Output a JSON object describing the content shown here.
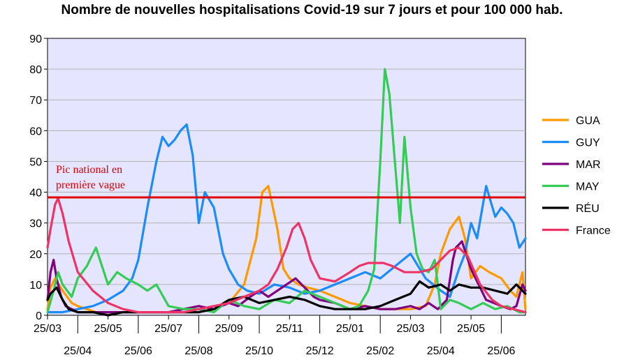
{
  "chart_data": {
    "type": "line",
    "title": "Nombre de nouvelles hospitalisations Covid-19 sur 7 jours et pour 100 000 hab.",
    "xlabel": "",
    "ylabel": "",
    "ylim": [
      0,
      90
    ],
    "yticks": [
      0,
      10,
      20,
      30,
      40,
      50,
      60,
      70,
      80,
      90
    ],
    "xlim": [
      0,
      15.8
    ],
    "x_tick_labels_row1": [
      "25/03",
      "25/05",
      "25/07",
      "25/09",
      "25/11",
      "25/01",
      "25/03",
      "25/05"
    ],
    "x_tick_labels_row2": [
      "25/04",
      "25/06",
      "25/08",
      "25/10",
      "25/12",
      "25/02",
      "25/04",
      "25/06"
    ],
    "grid": true,
    "plot_background": "#e5e5ff",
    "legend_position": "right",
    "reference_line": {
      "value": 38.3,
      "color": "#e00000",
      "label_line1": "Pic national en",
      "label_line2": "première vague"
    },
    "series": [
      {
        "name": "GUA",
        "color": "#ff9900",
        "x": [
          0,
          0.1,
          0.25,
          0.5,
          0.8,
          1.0,
          1.3,
          1.6,
          2.0,
          2.5,
          3.0,
          3.5,
          4.0,
          4.5,
          5.0,
          5.5,
          6.0,
          6.5,
          6.9,
          7.1,
          7.3,
          7.45,
          7.6,
          7.8,
          8.0,
          8.3,
          8.6,
          9.0,
          9.5,
          10.0,
          10.5,
          11.0,
          11.5,
          12.0,
          12.5,
          12.8,
          13.0,
          13.3,
          13.6,
          13.8,
          14.0,
          14.3,
          14.6,
          15.0,
          15.3,
          15.5,
          15.7,
          15.8
        ],
        "y": [
          2,
          9,
          12,
          8,
          4,
          3,
          2,
          1,
          1,
          1,
          1,
          1,
          1,
          1,
          1,
          2,
          4,
          10,
          25,
          40,
          42,
          35,
          28,
          15,
          12,
          10,
          9,
          8,
          6,
          4,
          3,
          2,
          2,
          2,
          3,
          10,
          20,
          28,
          32,
          25,
          12,
          16,
          14,
          12,
          8,
          6,
          14,
          2
        ]
      },
      {
        "name": "GUY",
        "color": "#1a8cff",
        "x": [
          0,
          0.5,
          1.0,
          1.5,
          2.0,
          2.5,
          2.8,
          3.0,
          3.3,
          3.6,
          3.8,
          4.0,
          4.2,
          4.4,
          4.6,
          4.8,
          5.0,
          5.2,
          5.5,
          5.8,
          6.0,
          6.3,
          6.6,
          7.0,
          7.5,
          8.0,
          8.5,
          9.0,
          9.5,
          10.0,
          10.5,
          11.0,
          11.5,
          12.0,
          12.5,
          13.0,
          13.3,
          13.6,
          13.8,
          14.0,
          14.2,
          14.5,
          14.8,
          15.0,
          15.2,
          15.4,
          15.6,
          15.8
        ],
        "y": [
          1,
          1,
          2,
          3,
          5,
          8,
          12,
          18,
          35,
          50,
          58,
          55,
          57,
          60,
          62,
          52,
          30,
          40,
          35,
          20,
          15,
          10,
          8,
          7,
          10,
          9,
          7,
          8,
          10,
          12,
          14,
          12,
          16,
          20,
          12,
          8,
          6,
          15,
          20,
          30,
          25,
          42,
          32,
          35,
          33,
          30,
          22,
          25
        ]
      },
      {
        "name": "MAR",
        "color": "#800080",
        "x": [
          0,
          0.1,
          0.2,
          0.3,
          0.45,
          0.6,
          0.8,
          1.0,
          1.5,
          2.0,
          2.5,
          3.0,
          3.5,
          4.0,
          4.5,
          5.0,
          5.5,
          6.0,
          6.3,
          6.7,
          7.0,
          7.3,
          7.6,
          7.9,
          8.2,
          8.5,
          8.8,
          9.0,
          9.5,
          10.0,
          10.5,
          11.0,
          11.5,
          12.0,
          12.3,
          12.6,
          12.9,
          13.2,
          13.4,
          13.5,
          13.7,
          14.0,
          14.5,
          15.0,
          15.3,
          15.5,
          15.7,
          15.8
        ],
        "y": [
          5,
          14,
          18,
          12,
          6,
          3,
          2,
          1,
          1,
          1,
          1,
          1,
          1,
          1,
          2,
          3,
          2,
          4,
          3,
          6,
          8,
          6,
          8,
          10,
          12,
          9,
          6,
          5,
          4,
          2,
          3,
          2,
          2,
          3,
          2,
          4,
          2,
          5,
          18,
          22,
          24,
          15,
          5,
          3,
          2,
          3,
          10,
          8
        ]
      },
      {
        "name": "MAY",
        "color": "#33cc55",
        "x": [
          0,
          0.2,
          0.35,
          0.5,
          0.8,
          1.0,
          1.3,
          1.6,
          2.0,
          2.3,
          2.6,
          3.0,
          3.3,
          3.6,
          4.0,
          4.5,
          5.0,
          5.5,
          6.0,
          6.5,
          7.0,
          7.5,
          8.0,
          8.5,
          9.0,
          9.5,
          10.0,
          10.3,
          10.6,
          10.8,
          11.0,
          11.15,
          11.3,
          11.5,
          11.65,
          11.8,
          12.0,
          12.2,
          12.4,
          12.6,
          12.8,
          13.0,
          13.3,
          13.6,
          14.0,
          14.4,
          14.8,
          15.2,
          15.6,
          15.8
        ],
        "y": [
          1,
          8,
          14,
          10,
          6,
          12,
          16,
          22,
          10,
          14,
          12,
          10,
          8,
          10,
          3,
          2,
          2,
          1,
          5,
          3,
          2,
          5,
          4,
          8,
          6,
          4,
          2,
          3,
          8,
          15,
          50,
          80,
          72,
          48,
          30,
          58,
          35,
          20,
          15,
          14,
          18,
          2,
          5,
          4,
          2,
          4,
          2,
          3,
          1,
          1
        ]
      },
      {
        "name": "RÉU",
        "color": "#000000",
        "x": [
          0,
          0.1,
          0.3,
          0.5,
          0.7,
          1.0,
          1.5,
          2.0,
          2.5,
          3.0,
          3.5,
          4.0,
          4.5,
          5.0,
          5.5,
          6.0,
          6.5,
          7.0,
          7.5,
          8.0,
          8.5,
          9.0,
          9.5,
          10.0,
          10.5,
          11.0,
          11.5,
          12.0,
          12.3,
          12.6,
          13.0,
          13.3,
          13.6,
          14.0,
          14.4,
          14.8,
          15.2,
          15.5,
          15.8
        ],
        "y": [
          5,
          7,
          9,
          5,
          2,
          1,
          1,
          0,
          1,
          1,
          1,
          1,
          1,
          1,
          2,
          5,
          6,
          4,
          5,
          6,
          5,
          3,
          2,
          2,
          2,
          3,
          5,
          7,
          11,
          9,
          10,
          8,
          10,
          9,
          9,
          8,
          7,
          10,
          7
        ]
      },
      {
        "name": "France",
        "color": "#ee3366",
        "x": [
          0,
          0.1,
          0.25,
          0.35,
          0.5,
          0.7,
          1.0,
          1.5,
          2.0,
          2.5,
          3.0,
          3.5,
          4.0,
          4.5,
          5.0,
          5.5,
          6.0,
          6.5,
          7.0,
          7.3,
          7.6,
          7.9,
          8.1,
          8.3,
          8.5,
          8.7,
          9.0,
          9.5,
          10.0,
          10.3,
          10.6,
          10.9,
          11.1,
          11.4,
          11.8,
          12.3,
          12.7,
          13.0,
          13.3,
          13.6,
          13.9,
          14.3,
          14.7,
          15.0,
          15.4,
          15.8
        ],
        "y": [
          22,
          28,
          36,
          38,
          33,
          24,
          14,
          8,
          4,
          2,
          1,
          1,
          1,
          1,
          2,
          3,
          4,
          6,
          8,
          10,
          15,
          22,
          28,
          30,
          25,
          18,
          12,
          11,
          14,
          16,
          17,
          17,
          17,
          16,
          14,
          14,
          15,
          18,
          21,
          22,
          19,
          10,
          5,
          3,
          2,
          1
        ]
      }
    ]
  }
}
